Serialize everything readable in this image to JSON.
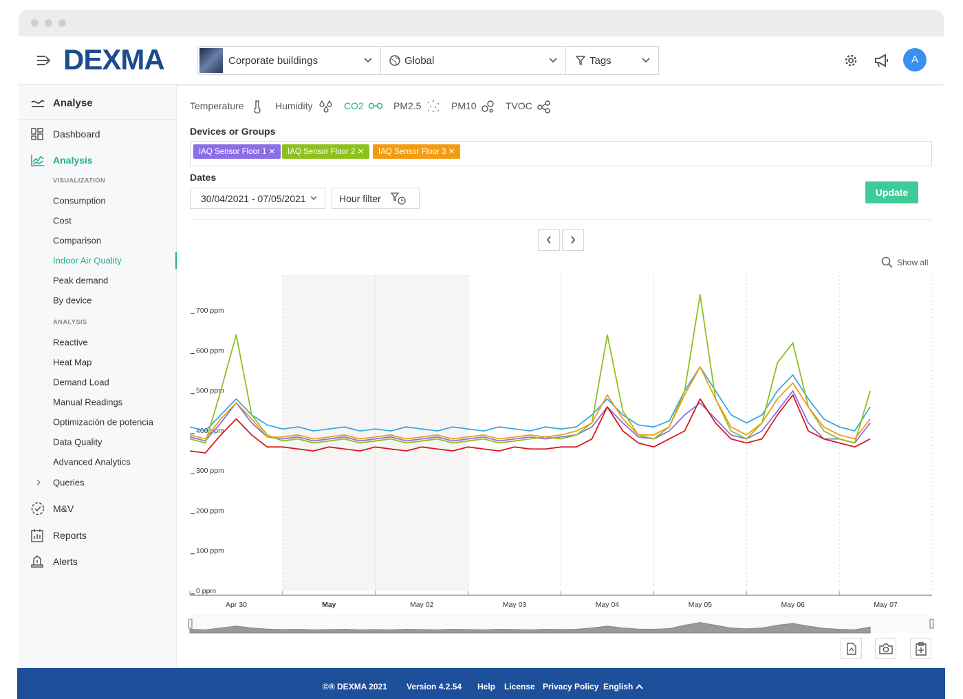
{
  "header": {
    "logo": "DEXMA",
    "building": "Corporate buildings",
    "scope": "Global",
    "tags": "Tags",
    "avatar": "A"
  },
  "sidebar": {
    "section": "Analyse",
    "dashboard": "Dashboard",
    "analysis": "Analysis",
    "visualization_heading": "VISUALIZATION",
    "visualization": [
      "Consumption",
      "Cost",
      "Comparison",
      "Indoor Air Quality",
      "Peak demand",
      "By device"
    ],
    "analysis_heading": "ANALYSIS",
    "analysis_items": [
      "Reactive",
      "Heat Map",
      "Demand Load",
      "Manual Readings",
      "Optimización de potencia",
      "Data Quality",
      "Advanced Analytics"
    ],
    "queries": "Queries",
    "mv": "M&V",
    "reports": "Reports",
    "alerts": "Alerts"
  },
  "metrics": [
    "Temperature",
    "Humidity",
    "CO2",
    "PM2.5",
    "PM10",
    "TVOC"
  ],
  "devices_label": "Devices or Groups",
  "dates_label": "Dates",
  "date_range": "30/04/2021 - 07/05/2021",
  "hour_filter": "Hour filter",
  "update": "Update",
  "show_all": "Show all",
  "footer": [
    "©® DEXMA 2021",
    "Version 4.2.54",
    "Help",
    "License",
    "Privacy Policy",
    "English"
  ],
  "chart_data": {
    "type": "line",
    "x": [
      "2021-04-30T00:00",
      "2021-04-30T04:00",
      "2021-04-30T08:00",
      "2021-04-30T12:00",
      "2021-04-30T16:00",
      "2021-04-30T20:00",
      "2021-05-01T00:00",
      "2021-05-01T04:00",
      "2021-05-01T08:00",
      "2021-05-01T12:00",
      "2021-05-01T16:00",
      "2021-05-01T20:00",
      "2021-05-02T00:00",
      "2021-05-02T04:00",
      "2021-05-02T08:00",
      "2021-05-02T12:00",
      "2021-05-02T16:00",
      "2021-05-02T20:00",
      "2021-05-03T00:00",
      "2021-05-03T04:00",
      "2021-05-03T08:00",
      "2021-05-03T12:00",
      "2021-05-03T16:00",
      "2021-05-03T20:00",
      "2021-05-04T00:00",
      "2021-05-04T04:00",
      "2021-05-04T08:00",
      "2021-05-04T12:00",
      "2021-05-04T16:00",
      "2021-05-04T20:00",
      "2021-05-05T00:00",
      "2021-05-05T04:00",
      "2021-05-05T08:00",
      "2021-05-05T12:00",
      "2021-05-05T16:00",
      "2021-05-05T20:00",
      "2021-05-06T00:00",
      "2021-05-06T04:00",
      "2021-05-06T08:00",
      "2021-05-06T12:00",
      "2021-05-06T16:00",
      "2021-05-06T20:00",
      "2021-05-07T00:00",
      "2021-05-07T04:00",
      "2021-05-07T08:00"
    ],
    "series": [
      {
        "color": "#3ba7e2",
        "values": [
          410,
          400,
          440,
          480,
          440,
          415,
          405,
          410,
          400,
          405,
          410,
          400,
          405,
          400,
          410,
          405,
          400,
          410,
          405,
          400,
          410,
          405,
          400,
          410,
          405,
          410,
          440,
          480,
          440,
          415,
          410,
          425,
          500,
          560,
          500,
          440,
          420,
          440,
          500,
          540,
          480,
          430,
          410,
          400,
          460
        ]
      },
      {
        "name": "IAQ Sensor Floor 1",
        "color": "#8b6ee8",
        "values": [
          385,
          375,
          420,
          470,
          420,
          385,
          380,
          385,
          375,
          380,
          385,
          375,
          380,
          385,
          375,
          380,
          385,
          375,
          380,
          385,
          375,
          380,
          385,
          380,
          385,
          390,
          410,
          460,
          420,
          385,
          380,
          400,
          440,
          470,
          430,
          390,
          380,
          400,
          450,
          500,
          420,
          380,
          380,
          370,
          420
        ]
      },
      {
        "name": "IAQ Sensor Floor 2",
        "color": "#8cc21b",
        "values": [
          380,
          370,
          500,
          640,
          440,
          390,
          375,
          380,
          370,
          375,
          380,
          370,
          375,
          380,
          370,
          375,
          380,
          370,
          375,
          380,
          370,
          375,
          380,
          385,
          380,
          390,
          420,
          640,
          450,
          390,
          380,
          410,
          500,
          740,
          480,
          400,
          380,
          420,
          570,
          620,
          460,
          400,
          380,
          370,
          500
        ]
      },
      {
        "name": "IAQ Sensor Floor 3",
        "color": "#f39c12",
        "values": [
          390,
          380,
          430,
          470,
          430,
          385,
          385,
          390,
          380,
          385,
          390,
          380,
          385,
          390,
          380,
          385,
          390,
          380,
          385,
          390,
          380,
          385,
          390,
          385,
          390,
          400,
          420,
          490,
          430,
          390,
          390,
          410,
          490,
          560,
          480,
          410,
          390,
          420,
          480,
          520,
          460,
          410,
          390,
          380,
          430
        ]
      },
      {
        "color": "#d7191c",
        "values": [
          350,
          345,
          390,
          430,
          390,
          360,
          360,
          355,
          350,
          360,
          355,
          350,
          360,
          355,
          350,
          360,
          355,
          350,
          360,
          355,
          350,
          360,
          355,
          355,
          360,
          360,
          380,
          460,
          400,
          370,
          360,
          380,
          400,
          480,
          420,
          380,
          370,
          380,
          440,
          490,
          400,
          380,
          370,
          360,
          380
        ]
      }
    ],
    "xlim": [
      "2021-04-30T00:00",
      "2021-05-08T00:00"
    ],
    "xticks": [
      {
        "value": "2021-04-30T00:00",
        "label": "Apr 30"
      },
      {
        "value": "2021-05-01T00:00",
        "label": "May"
      },
      {
        "value": "2021-05-02T00:00",
        "label": "May 02"
      },
      {
        "value": "2021-05-03T00:00",
        "label": "May 03"
      },
      {
        "value": "2021-05-04T00:00",
        "label": "May 04"
      },
      {
        "value": "2021-05-05T00:00",
        "label": "May 05"
      },
      {
        "value": "2021-05-06T00:00",
        "label": "May 06"
      },
      {
        "value": "2021-05-07T00:00",
        "label": "May 07"
      }
    ],
    "ylim": [
      0,
      800
    ],
    "yticks": [
      {
        "value": 0,
        "label": "0 ppm"
      },
      {
        "value": 100,
        "label": "100 ppm"
      },
      {
        "value": 200,
        "label": "200 ppm"
      },
      {
        "value": 300,
        "label": "300 ppm"
      },
      {
        "value": 400,
        "label": "400 ppm"
      },
      {
        "value": 500,
        "label": "500 ppm"
      },
      {
        "value": 600,
        "label": "600 ppm"
      },
      {
        "value": 700,
        "label": "700 ppm"
      }
    ],
    "plot_bands": [
      [
        "2021-05-01T00:00",
        "2021-05-03T00:00"
      ]
    ],
    "grid": true
  }
}
